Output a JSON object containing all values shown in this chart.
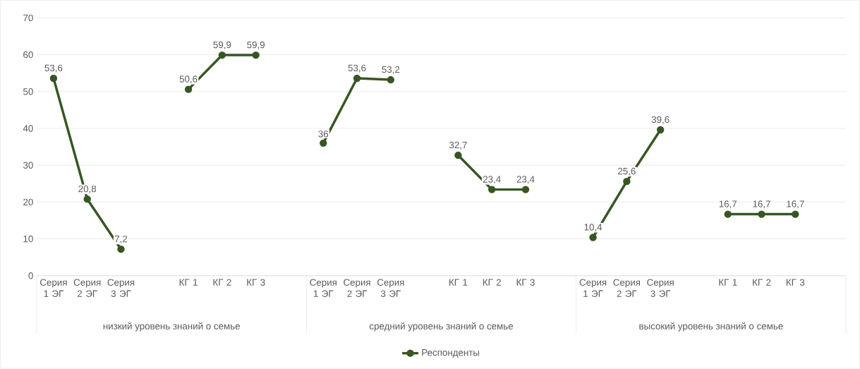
{
  "chart_data": {
    "type": "line",
    "categories": [
      "Серия 1 ЭГ",
      "Серия 2 ЭГ",
      "Серия 3 ЭГ",
      null,
      "КГ 1",
      "КГ 2",
      "КГ 3",
      null,
      "Серия 1 ЭГ",
      "Серия 2 ЭГ",
      "Серия 3 ЭГ",
      null,
      "КГ 1",
      "КГ 2",
      "КГ 3",
      null,
      "Серия 1 ЭГ",
      "Серия 2 ЭГ",
      "Серия 3 ЭГ",
      null,
      "КГ 1",
      "КГ 2",
      "КГ 3",
      null
    ],
    "series": [
      {
        "name": "Респонденты",
        "color": "#375623",
        "values": [
          53.6,
          20.8,
          7.2,
          null,
          50.6,
          59.9,
          59.9,
          null,
          36,
          53.6,
          53.2,
          null,
          32.7,
          23.4,
          23.4,
          null,
          10.4,
          25.6,
          39.6,
          null,
          16.7,
          16.7,
          16.7,
          null
        ],
        "value_labels": [
          "53,6",
          "20,8",
          "7,2",
          null,
          "50,6",
          "59,9",
          "59,9",
          null,
          "36",
          "53,6",
          "53,2",
          null,
          "32,7",
          "23,4",
          "23,4",
          null,
          "10,4",
          "25,6",
          "39,6",
          null,
          "16,7",
          "16,7",
          "16,7",
          null
        ]
      }
    ],
    "annotations": [
      "низкий уровень знаний о семье",
      "средний уровень знаний о семье",
      "высокий уровень знаний о семье"
    ],
    "ylim": [
      0,
      70
    ],
    "yticks": [
      0,
      10,
      20,
      30,
      40,
      50,
      60,
      70
    ],
    "grid": "y",
    "legend": "bottom",
    "marker": "circle",
    "line_style": "solid"
  }
}
